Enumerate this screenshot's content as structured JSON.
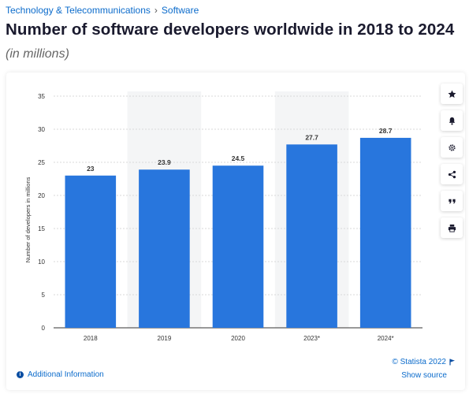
{
  "breadcrumb": {
    "category": "Technology & Telecommunications",
    "separator": "›",
    "subcategory": "Software"
  },
  "title": "Number of software developers worldwide in 2018 to 2024",
  "subtitle": "(in millions)",
  "chart_data": {
    "type": "bar",
    "title": "Number of software developers worldwide in 2018 to 2024",
    "subtitle": "(in millions)",
    "xlabel": "",
    "ylabel": "Number of developers in millions",
    "categories": [
      "2018",
      "2019",
      "2020",
      "2023*",
      "2024*"
    ],
    "values": [
      23,
      23.9,
      24.5,
      27.7,
      28.7
    ],
    "value_labels": [
      "23",
      "23.9",
      "24.5",
      "27.7",
      "28.7"
    ],
    "ylim": [
      0,
      35
    ],
    "yticks": [
      0,
      5,
      10,
      15,
      20,
      25,
      30,
      35
    ],
    "grid": true,
    "bar_color": "#2876dd",
    "shaded_band_color": "#f4f5f6"
  },
  "toolbar": {
    "icons": [
      "star-icon",
      "bell-icon",
      "gear-icon",
      "share-icon",
      "quote-icon",
      "print-icon"
    ]
  },
  "footer": {
    "info_icon": "i",
    "additional_info": "Additional Information",
    "copyright": "© Statista 2022",
    "flag_icon": "flag-icon",
    "show_source": "Show source"
  },
  "colors": {
    "link": "#0b6bcb",
    "bar": "#2876dd",
    "title": "#1a1a2e"
  }
}
